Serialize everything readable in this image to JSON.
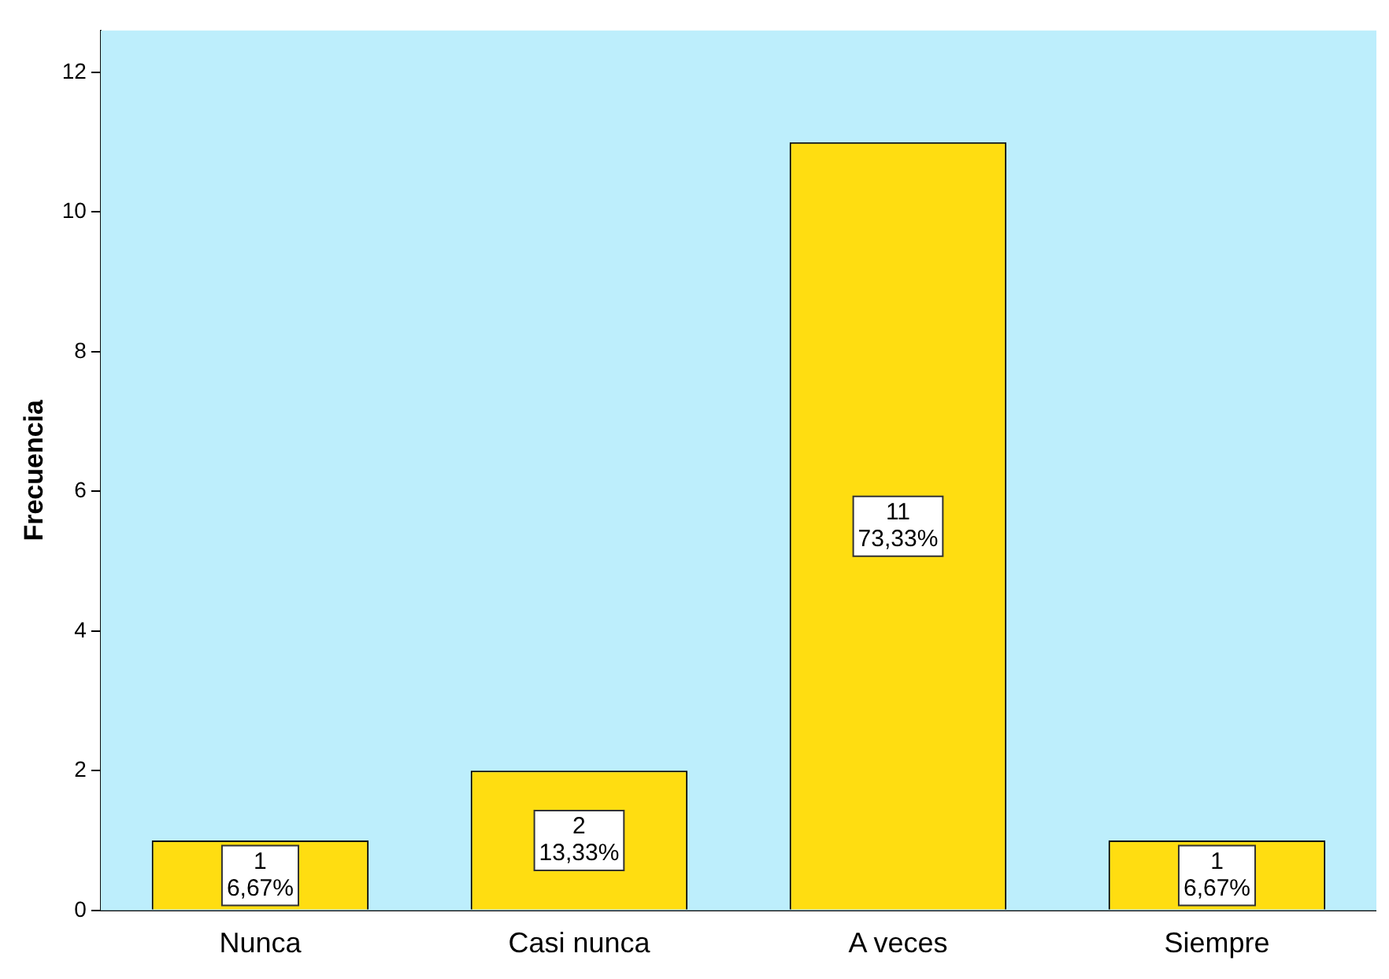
{
  "chart_data": {
    "type": "bar",
    "ylabel": "Frecuencia",
    "categories": [
      "Nunca",
      "Casi nunca",
      "A veces",
      "Siempre"
    ],
    "values": [
      1,
      2,
      11,
      1
    ],
    "color": "#ffdd11",
    "value_labels": [
      "1\n6,67%",
      "2\n13,33%",
      "11\n73,33%",
      "1\n6,67%"
    ],
    "ylim": [
      0,
      12.6
    ],
    "yticks": [
      0,
      2,
      4,
      6,
      8,
      10,
      12
    ],
    "grid": false,
    "legend": false
  }
}
